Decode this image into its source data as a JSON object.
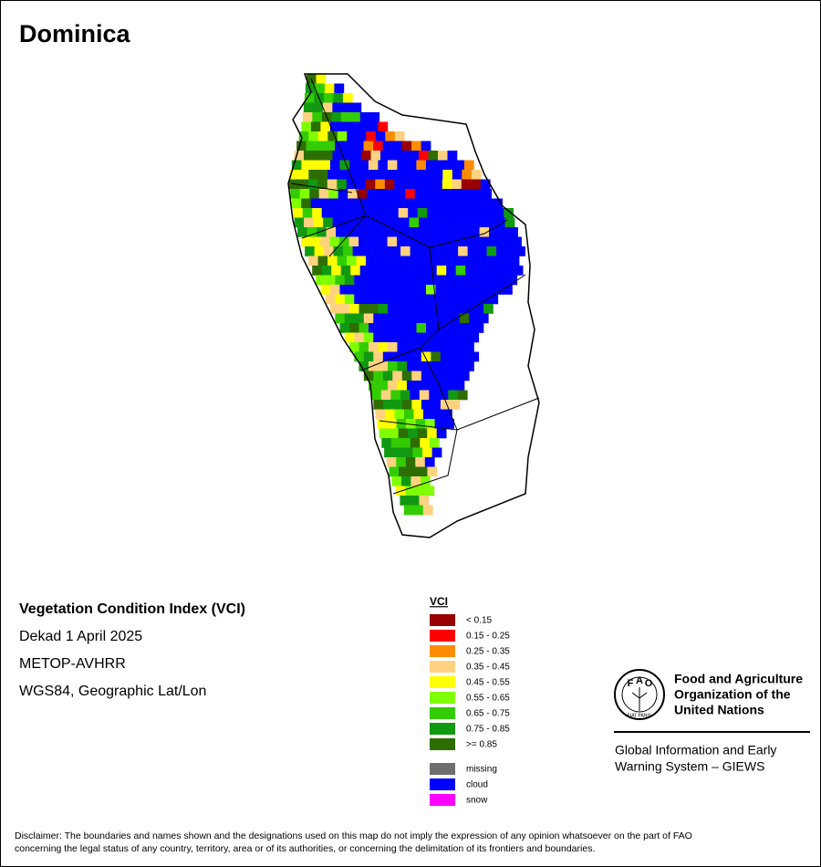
{
  "title": "Dominica",
  "info": [
    "Vegetation Condition Index (VCI)",
    "Dekad 1 April 2025",
    "METOP-AVHRR",
    "WGS84, Geographic Lat/Lon"
  ],
  "legend": {
    "title": "VCI",
    "items": [
      {
        "label": "< 0.15",
        "color": "#990000"
      },
      {
        "label": "0.15 - 0.25",
        "color": "#ff0000"
      },
      {
        "label": "0.25 - 0.35",
        "color": "#ff8c00"
      },
      {
        "label": "0.35 - 0.45",
        "color": "#ffd280"
      },
      {
        "label": "0.45 - 0.55",
        "color": "#ffff00"
      },
      {
        "label": "0.55 - 0.65",
        "color": "#80ff00"
      },
      {
        "label": "0.65 - 0.75",
        "color": "#33cc00"
      },
      {
        "label": "0.75 - 0.85",
        "color": "#119911"
      },
      {
        "label": ">= 0.85",
        "color": "#2d6e00"
      }
    ],
    "extra": [
      {
        "label": "missing",
        "color": "#6e6e6e"
      },
      {
        "label": "cloud",
        "color": "#0000ff"
      },
      {
        "label": "snow",
        "color": "#ff00ff"
      }
    ]
  },
  "logo": {
    "letters": [
      "F",
      "A",
      "O"
    ],
    "motto": "FIAT PANIS"
  },
  "org": {
    "name": [
      "Food and Agriculture",
      "Organization of the",
      "United Nations"
    ],
    "system": [
      "Global Information and Early",
      "Warning System – GIEWS"
    ]
  },
  "disclaimer": [
    "Disclaimer: The boundaries and names shown and the designations used on this map do not imply the expression of any opinion whatsoever on the part of FAO",
    "concerning the legal status of any country, territory, area or of its authorities, or concerning the delimitation of its frontiers and boundaries."
  ]
}
